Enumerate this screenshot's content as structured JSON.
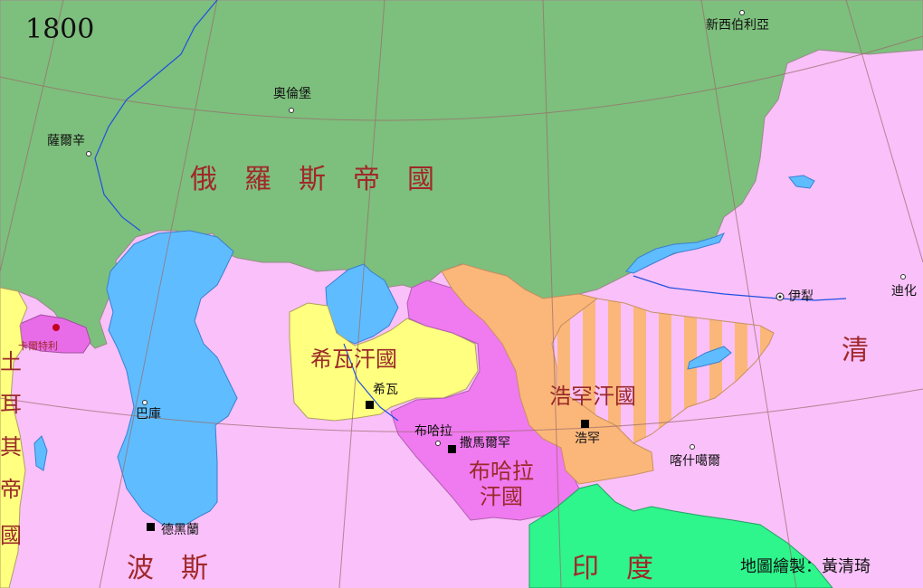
{
  "year": "1800",
  "credit": "地圖繪製：黃清琦",
  "colors": {
    "russia": "#7dbf7d",
    "persia": "#f9c0f9",
    "qing": "#f9c0f9",
    "khiva": "#ffff80",
    "bukhara": "#f07af0",
    "kokand": "#fbb77a",
    "ottoman": "#ffff80",
    "india": "#2ef58c",
    "water": "#5fbdff",
    "karatal": "#e86be8"
  },
  "regions": {
    "russia": "俄　羅　斯　帝　國",
    "khiva": "希瓦汗國",
    "kokand": "浩罕汗國",
    "bukhara_line1": "布哈拉",
    "bukhara_line2": "汗國",
    "qing": "清",
    "persia": "波　斯",
    "india": "印　度",
    "ottoman_chars": [
      "土",
      "耳",
      "其",
      "帝",
      "國"
    ]
  },
  "cities": {
    "siberia": "新西伯利亞",
    "orenburg": "奧倫堡",
    "samara": "薩爾辛",
    "baku": "巴庫",
    "khiva": "希瓦",
    "bukhara": "布哈拉",
    "samarkand": "撒馬爾罕",
    "kokand": "浩罕",
    "kashgar": "喀什噶爾",
    "yili": "伊犁",
    "dihua": "迪化",
    "tehran": "德黑蘭",
    "kartli": "卡爾特利"
  }
}
